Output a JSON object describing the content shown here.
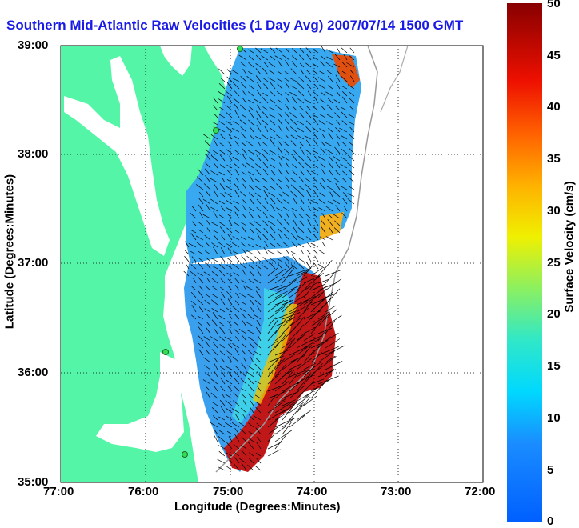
{
  "title": "Southern Mid-Atlantic Raw Velocities (1 Day Avg) 2007/07/14 1500 GMT",
  "xlabel": "Longitude (Degrees:Minutes)",
  "ylabel": "Latitude (Degrees:Minutes)",
  "x_ticks": [
    "77:00",
    "76:00",
    "75:00",
    "74:00",
    "73:00",
    "72:00"
  ],
  "y_ticks": [
    "39:00",
    "38:00",
    "37:00",
    "36:00",
    "35:00"
  ],
  "colorbar": {
    "label": "Surface Velocity (cm/s)",
    "ticks": [
      "0",
      "5",
      "10",
      "15",
      "20",
      "25",
      "30",
      "35",
      "40",
      "45",
      "50"
    ],
    "range": [
      0,
      50
    ],
    "colormap": "jet"
  },
  "colors": {
    "land": "#55f5a8",
    "water": "#ffffff",
    "title": "#1a1ae6",
    "vectors": "#000000",
    "station": "#33dd55"
  },
  "extent": {
    "lon": [
      -77,
      -72
    ],
    "lat": [
      35,
      39
    ]
  },
  "grid": true
}
